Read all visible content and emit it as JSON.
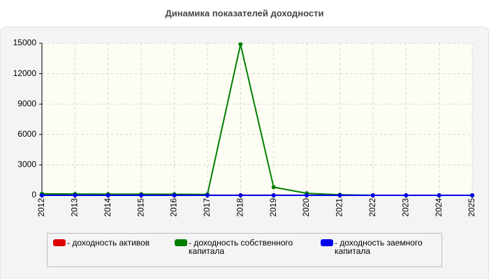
{
  "chart_data": {
    "type": "line",
    "title": "Динамика показателей доходности",
    "categories": [
      "2012",
      "2013",
      "2014",
      "2015",
      "2016",
      "2017",
      "2018",
      "2019",
      "2020",
      "2021",
      "2022",
      "2023",
      "2024",
      "2025"
    ],
    "series": [
      {
        "name": "- доходность активов",
        "color": "#e00000",
        "values": [
          20,
          15,
          12,
          10,
          10,
          8,
          10,
          8,
          5,
          3,
          0,
          0,
          0,
          0
        ]
      },
      {
        "name": "- доходность собственного капитала",
        "color": "#008000",
        "values": [
          150,
          130,
          110,
          110,
          100,
          90,
          14900,
          800,
          200,
          50,
          0,
          0,
          0,
          0
        ]
      },
      {
        "name": "- доходность заемного капитала",
        "color": "#0000ee",
        "values": [
          0,
          0,
          0,
          0,
          0,
          0,
          0,
          0,
          0,
          0,
          0,
          0,
          0,
          0
        ]
      }
    ],
    "ylim": [
      0,
      15000
    ],
    "yticks": [
      0,
      3000,
      6000,
      9000,
      12000,
      15000
    ],
    "grid": true
  }
}
